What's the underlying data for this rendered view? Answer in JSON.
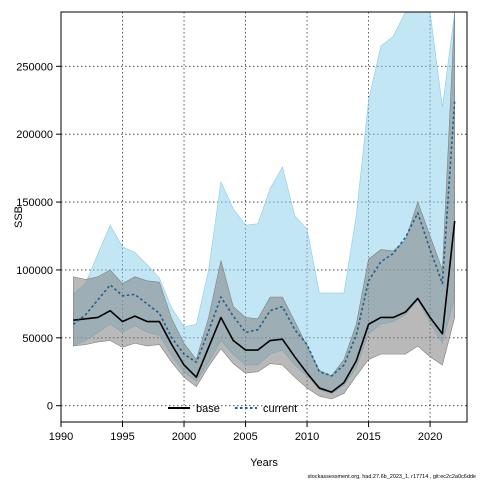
{
  "chart_data": {
    "type": "line",
    "title": "",
    "xlabel": "Years",
    "ylabel": "SSB",
    "xlim": [
      1990,
      2023
    ],
    "ylim": [
      -12000,
      290000
    ],
    "x_ticks": [
      1990,
      1995,
      2000,
      2005,
      2010,
      2015,
      2020
    ],
    "y_ticks": [
      0,
      50000,
      100000,
      150000,
      200000,
      250000
    ],
    "grid": true,
    "legend_position": "bottom-center",
    "x": [
      1991,
      1992,
      1993,
      1994,
      1995,
      1996,
      1997,
      1998,
      1999,
      2000,
      2001,
      2002,
      2003,
      2004,
      2005,
      2006,
      2007,
      2008,
      2009,
      2010,
      2011,
      2012,
      2013,
      2014,
      2015,
      2016,
      2017,
      2018,
      2019,
      2020,
      2021,
      2022
    ],
    "series": [
      {
        "name": "base",
        "color": "#000000",
        "line_style": "solid",
        "band_color": "#808080",
        "values": [
          63000,
          64000,
          65000,
          70000,
          62000,
          66000,
          62000,
          62000,
          45000,
          30000,
          21000,
          43000,
          65000,
          48000,
          41000,
          41000,
          48000,
          49000,
          36000,
          24000,
          13000,
          10000,
          17000,
          33000,
          60000,
          65000,
          65000,
          69000,
          79000,
          65000,
          53000,
          136000
        ],
        "lower": [
          44000,
          45000,
          47000,
          48000,
          43000,
          46000,
          44000,
          45000,
          32000,
          21000,
          14000,
          29000,
          42000,
          31000,
          24000,
          25000,
          31000,
          30000,
          21000,
          13000,
          7000,
          5000,
          9000,
          22000,
          34000,
          38000,
          38000,
          38000,
          44000,
          36000,
          30000,
          65000
        ],
        "upper": [
          95000,
          93000,
          95000,
          100000,
          90000,
          95000,
          92000,
          91000,
          64000,
          46000,
          34000,
          65000,
          107000,
          73000,
          65000,
          64000,
          80000,
          80000,
          62000,
          44000,
          26000,
          22000,
          34000,
          60000,
          108000,
          115000,
          114000,
          122000,
          150000,
          125000,
          100000,
          290000
        ]
      },
      {
        "name": "current",
        "color": "#1f5f8b",
        "line_style": "dotted",
        "band_color": "#87ceeb",
        "values": [
          60000,
          67000,
          78000,
          89000,
          81000,
          82000,
          75000,
          68000,
          50000,
          38000,
          32000,
          55000,
          80000,
          66000,
          54000,
          56000,
          70000,
          73000,
          56000,
          45000,
          25000,
          22000,
          30000,
          52000,
          92000,
          106000,
          112000,
          124000,
          142000,
          115000,
          90000,
          225000
        ],
        "lower": [
          44000,
          48000,
          54000,
          60000,
          54000,
          59000,
          54000,
          52000,
          37000,
          25000,
          18000,
          32000,
          48000,
          38000,
          30000,
          30000,
          38000,
          41000,
          30000,
          22000,
          12000,
          9000,
          15000,
          28000,
          53000,
          60000,
          62000,
          67000,
          78000,
          61000,
          46000,
          80000
        ],
        "upper": [
          82000,
          90000,
          112000,
          133000,
          117000,
          113000,
          104000,
          94000,
          72000,
          58000,
          60000,
          100000,
          165000,
          145000,
          133000,
          134000,
          160000,
          176000,
          140000,
          130000,
          83000,
          83000,
          83000,
          140000,
          225000,
          265000,
          272000,
          290000,
          290000,
          290000,
          220000,
          290000
        ]
      }
    ]
  },
  "footer": {
    "credit": "stockassessment.org, had.27.6b_2023_1, r17714 , git:ec2c2a0c6dde"
  }
}
